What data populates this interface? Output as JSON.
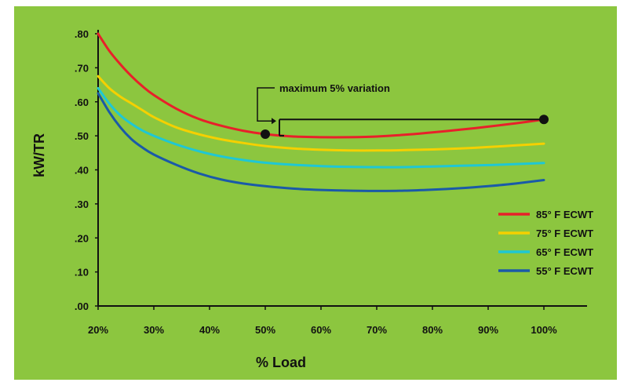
{
  "chart_data": {
    "type": "line",
    "title": "",
    "xlabel": "% Load",
    "ylabel": "kW/TR",
    "x": [
      20,
      30,
      40,
      50,
      60,
      70,
      80,
      90,
      100
    ],
    "x_tick_labels": [
      "20%",
      "30%",
      "40%",
      "50%",
      "60%",
      "70%",
      "80%",
      "90%",
      "100%"
    ],
    "y_tick_values": [
      0,
      0.1,
      0.2,
      0.3,
      0.4,
      0.5,
      0.6,
      0.7,
      0.8
    ],
    "y_tick_labels": [
      ".00",
      ".10",
      ".20",
      ".30",
      ".40",
      ".50",
      ".60",
      ".70",
      ".80"
    ],
    "xlim": [
      20,
      100
    ],
    "ylim": [
      0,
      0.8
    ],
    "grid": false,
    "legend_position": "bottom-right",
    "series": [
      {
        "name": "85° F ECWT",
        "color": "#e8202a",
        "x": [
          20,
          22,
          24,
          26,
          28,
          30,
          34,
          38,
          42,
          46,
          50,
          55,
          60,
          65,
          70,
          75,
          80,
          85,
          90,
          95,
          100
        ],
        "values": [
          0.8,
          0.75,
          0.71,
          0.675,
          0.645,
          0.62,
          0.58,
          0.55,
          0.53,
          0.515,
          0.505,
          0.498,
          0.496,
          0.496,
          0.498,
          0.503,
          0.51,
          0.518,
          0.527,
          0.537,
          0.548
        ]
      },
      {
        "name": "75° F ECWT",
        "color": "#f5d000",
        "x": [
          20,
          22,
          24,
          26,
          28,
          30,
          34,
          38,
          42,
          46,
          50,
          55,
          60,
          65,
          70,
          75,
          80,
          85,
          90,
          95,
          100
        ],
        "values": [
          0.675,
          0.64,
          0.615,
          0.595,
          0.575,
          0.555,
          0.525,
          0.505,
          0.49,
          0.479,
          0.47,
          0.463,
          0.459,
          0.457,
          0.457,
          0.458,
          0.46,
          0.463,
          0.467,
          0.472,
          0.477
        ]
      },
      {
        "name": "65° F ECWT",
        "color": "#1fc7d4",
        "x": [
          20,
          22,
          24,
          26,
          28,
          30,
          34,
          38,
          42,
          46,
          50,
          55,
          60,
          65,
          70,
          75,
          80,
          85,
          90,
          95,
          100
        ],
        "values": [
          0.64,
          0.595,
          0.56,
          0.535,
          0.515,
          0.5,
          0.475,
          0.455,
          0.44,
          0.429,
          0.421,
          0.415,
          0.411,
          0.409,
          0.408,
          0.408,
          0.41,
          0.412,
          0.414,
          0.417,
          0.42
        ]
      },
      {
        "name": "55° F ECWT",
        "color": "#1a5aa8",
        "x": [
          20,
          22,
          24,
          26,
          28,
          30,
          34,
          38,
          42,
          46,
          50,
          55,
          60,
          65,
          70,
          75,
          80,
          85,
          90,
          95,
          100
        ],
        "values": [
          0.625,
          0.57,
          0.525,
          0.49,
          0.465,
          0.445,
          0.415,
          0.39,
          0.372,
          0.36,
          0.352,
          0.345,
          0.341,
          0.339,
          0.338,
          0.339,
          0.342,
          0.346,
          0.352,
          0.36,
          0.37
        ]
      }
    ],
    "annotation": {
      "text": "maximum 5% variation",
      "points": [
        {
          "x": 50,
          "y": 0.505
        },
        {
          "x": 100,
          "y": 0.548
        }
      ]
    }
  }
}
